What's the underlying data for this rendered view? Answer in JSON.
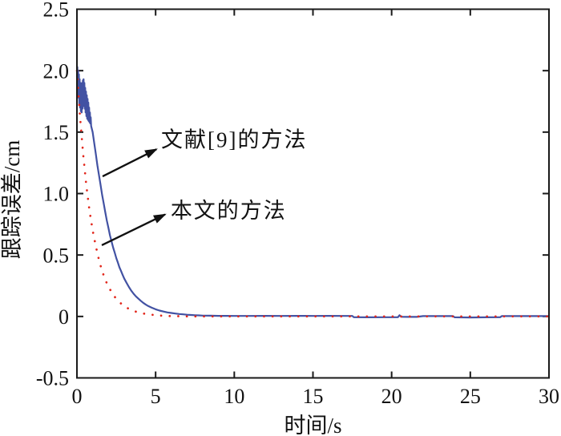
{
  "figure": {
    "background_color": "#ffffff",
    "axis_color": "#1a1a1a",
    "text_color": "#121212"
  },
  "chart_data": {
    "type": "line",
    "title": "",
    "xlabel": "时间/s",
    "ylabel": "跟踪误差/cm",
    "xlim": [
      0,
      30
    ],
    "ylim": [
      -0.5,
      2.5
    ],
    "grid": false,
    "legend_position": "none",
    "x_ticks": [
      0,
      5,
      10,
      15,
      20,
      25,
      30
    ],
    "x_tick_labels": [
      "0",
      "5",
      "10",
      "15",
      "20",
      "25",
      "30"
    ],
    "y_ticks": [
      -0.5,
      0,
      0.5,
      1.0,
      1.5,
      2.0,
      2.5
    ],
    "y_tick_labels": [
      "-0.5",
      "0",
      "0.5",
      "1.0",
      "1.5",
      "2.0",
      "2.5"
    ],
    "series": [
      {
        "name": "文献[9]的方法",
        "color": "#4252a3",
        "style": "solid",
        "points": [
          [
            0.0,
            1.95
          ],
          [
            0.025,
            2.03
          ],
          [
            0.05,
            1.83
          ],
          [
            0.075,
            2.0
          ],
          [
            0.1,
            1.78
          ],
          [
            0.125,
            1.97
          ],
          [
            0.15,
            1.73
          ],
          [
            0.175,
            1.93
          ],
          [
            0.2,
            1.7
          ],
          [
            0.225,
            1.9
          ],
          [
            0.25,
            1.67
          ],
          [
            0.275,
            1.89
          ],
          [
            0.3,
            1.66
          ],
          [
            0.325,
            1.9
          ],
          [
            0.35,
            1.69
          ],
          [
            0.375,
            1.92
          ],
          [
            0.4,
            1.71
          ],
          [
            0.425,
            1.93
          ],
          [
            0.45,
            1.72
          ],
          [
            0.475,
            1.9
          ],
          [
            0.5,
            1.69
          ],
          [
            0.525,
            1.86
          ],
          [
            0.55,
            1.66
          ],
          [
            0.575,
            1.83
          ],
          [
            0.6,
            1.63
          ],
          [
            0.625,
            1.8
          ],
          [
            0.65,
            1.61
          ],
          [
            0.675,
            1.77
          ],
          [
            0.7,
            1.6
          ],
          [
            0.725,
            1.74
          ],
          [
            0.75,
            1.59
          ],
          [
            0.775,
            1.7
          ],
          [
            0.8,
            1.58
          ],
          [
            0.825,
            1.66
          ],
          [
            0.85,
            1.57
          ],
          [
            0.875,
            1.62
          ],
          [
            0.9,
            1.55
          ],
          [
            1.0,
            1.5
          ],
          [
            1.1,
            1.41
          ],
          [
            1.2,
            1.32
          ],
          [
            1.3,
            1.23
          ],
          [
            1.4,
            1.15
          ],
          [
            1.5,
            1.07
          ],
          [
            1.6,
            0.99
          ],
          [
            1.7,
            0.92
          ],
          [
            1.8,
            0.85
          ],
          [
            1.9,
            0.78
          ],
          [
            2.0,
            0.72
          ],
          [
            2.1,
            0.66
          ],
          [
            2.2,
            0.61
          ],
          [
            2.3,
            0.56
          ],
          [
            2.4,
            0.52
          ],
          [
            2.5,
            0.475
          ],
          [
            2.6,
            0.44
          ],
          [
            2.7,
            0.4
          ],
          [
            2.8,
            0.37
          ],
          [
            2.9,
            0.34
          ],
          [
            3.0,
            0.31
          ],
          [
            3.15,
            0.275
          ],
          [
            3.3,
            0.24
          ],
          [
            3.45,
            0.21
          ],
          [
            3.6,
            0.185
          ],
          [
            3.75,
            0.163
          ],
          [
            3.9,
            0.145
          ],
          [
            4.05,
            0.128
          ],
          [
            4.2,
            0.112
          ],
          [
            4.35,
            0.099
          ],
          [
            4.5,
            0.087
          ],
          [
            4.75,
            0.071
          ],
          [
            5.0,
            0.058
          ],
          [
            5.25,
            0.048
          ],
          [
            5.5,
            0.04
          ],
          [
            5.75,
            0.033
          ],
          [
            6.0,
            0.028
          ],
          [
            6.25,
            0.024
          ],
          [
            6.5,
            0.02
          ],
          [
            6.75,
            0.017
          ],
          [
            7.0,
            0.014
          ],
          [
            7.25,
            0.012
          ],
          [
            7.5,
            0.01
          ],
          [
            7.75,
            0.0085
          ],
          [
            8.0,
            0.007
          ],
          [
            8.5,
            0.006
          ],
          [
            9.0,
            0.005
          ],
          [
            9.5,
            0.0045
          ],
          [
            10,
            0.004
          ],
          [
            11,
            0.004
          ],
          [
            12,
            0.0045
          ],
          [
            13,
            0.004
          ],
          [
            14,
            0.0045
          ],
          [
            15,
            0.004
          ],
          [
            16,
            0.0045
          ],
          [
            17,
            0.004
          ],
          [
            17.5,
            0.004
          ],
          [
            17.6,
            -0.006
          ],
          [
            18.5,
            -0.007
          ],
          [
            19.5,
            -0.006
          ],
          [
            20.4,
            -0.006
          ],
          [
            20.5,
            0.01
          ],
          [
            20.6,
            -0.003
          ],
          [
            21.6,
            -0.004
          ],
          [
            22.0,
            0.003
          ],
          [
            23,
            0.003
          ],
          [
            23.9,
            0.003
          ],
          [
            24.0,
            -0.007
          ],
          [
            25,
            -0.008
          ],
          [
            26,
            -0.007
          ],
          [
            26.9,
            -0.006
          ],
          [
            27.0,
            0.003
          ],
          [
            28,
            0.003
          ],
          [
            29,
            0.003
          ],
          [
            30,
            0.003
          ]
        ]
      },
      {
        "name": "本文的方法",
        "color": "#e2271c",
        "style": "dotted",
        "points": [
          [
            0.0,
            2.0
          ],
          [
            0.2,
            1.62
          ],
          [
            0.4,
            1.31
          ],
          [
            0.6,
            1.06
          ],
          [
            0.8,
            0.86
          ],
          [
            1.0,
            0.7
          ],
          [
            1.2,
            0.57
          ],
          [
            1.4,
            0.46
          ],
          [
            1.6,
            0.37
          ],
          [
            1.8,
            0.3
          ],
          [
            2.0,
            0.24
          ],
          [
            2.2,
            0.2
          ],
          [
            2.4,
            0.16
          ],
          [
            2.6,
            0.13
          ],
          [
            2.8,
            0.105
          ],
          [
            3.0,
            0.085
          ],
          [
            3.2,
            0.069
          ],
          [
            3.4,
            0.056
          ],
          [
            3.6,
            0.045
          ],
          [
            3.8,
            0.037
          ],
          [
            4.0,
            0.03
          ],
          [
            4.4,
            0.019
          ],
          [
            4.8,
            0.013
          ],
          [
            5.2,
            0.008
          ],
          [
            5.6,
            0.005
          ],
          [
            6.0,
            0.003
          ],
          [
            7.0,
            0.001
          ],
          [
            8,
            0.0
          ],
          [
            9,
            0.0
          ],
          [
            10,
            0.0
          ],
          [
            11,
            0.0
          ],
          [
            12,
            0.0
          ],
          [
            13,
            0.0
          ],
          [
            14,
            0.0
          ],
          [
            15,
            0.0
          ],
          [
            16,
            0.0
          ],
          [
            17,
            0.0
          ],
          [
            18,
            0.0
          ],
          [
            19,
            0.0
          ],
          [
            20,
            0.0
          ],
          [
            21,
            0.0
          ],
          [
            22,
            0.0
          ],
          [
            23,
            0.0
          ],
          [
            24,
            0.0
          ],
          [
            25,
            0.0
          ],
          [
            26,
            0.0
          ],
          [
            27,
            0.0
          ],
          [
            28,
            0.0
          ],
          [
            29,
            0.0
          ],
          [
            30,
            0.0
          ]
        ]
      }
    ],
    "annotations": [
      {
        "text": "文献[9]的方法",
        "text_t": 5.35,
        "text_v": 1.42,
        "arrow_from_t": 1.63,
        "arrow_from_v": 1.14,
        "arrow_to_t": 5.05,
        "arrow_to_v": 1.36
      },
      {
        "text": "本文的方法",
        "text_t": 5.95,
        "text_v": 0.84,
        "arrow_from_t": 1.58,
        "arrow_from_v": 0.58,
        "arrow_to_t": 5.6,
        "arrow_to_v": 0.83
      }
    ]
  }
}
